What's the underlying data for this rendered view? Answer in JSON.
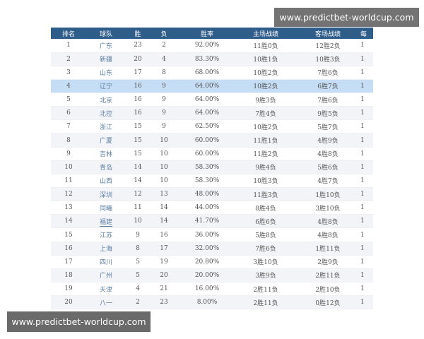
{
  "watermark": {
    "text": "www.predictbet-worldcup.com"
  },
  "table": {
    "columns": [
      "排名",
      "球队",
      "胜",
      "负",
      "胜率",
      "主场战绩",
      "客场战绩",
      "每"
    ],
    "rows": [
      {
        "rank": "1",
        "team": "广东",
        "w": "23",
        "l": "2",
        "pct": "92.00%",
        "home": "11胜0负",
        "away": "12胜2负",
        "extra": "1"
      },
      {
        "rank": "2",
        "team": "新疆",
        "w": "20",
        "l": "4",
        "pct": "83.30%",
        "home": "10胜1负",
        "away": "10胜3负",
        "extra": "1"
      },
      {
        "rank": "3",
        "team": "山东",
        "w": "17",
        "l": "8",
        "pct": "68.00%",
        "home": "10胜2负",
        "away": "7胜6负",
        "extra": "1"
      },
      {
        "rank": "4",
        "team": "辽宁",
        "w": "16",
        "l": "9",
        "pct": "64.00%",
        "home": "10胜2负",
        "away": "6胜7负",
        "extra": "1"
      },
      {
        "rank": "5",
        "team": "北京",
        "w": "16",
        "l": "9",
        "pct": "64.00%",
        "home": "9胜3负",
        "away": "7胜6负",
        "extra": "1"
      },
      {
        "rank": "6",
        "team": "北控",
        "w": "16",
        "l": "9",
        "pct": "64.00%",
        "home": "7胜4负",
        "away": "9胜5负",
        "extra": "1"
      },
      {
        "rank": "7",
        "team": "浙江",
        "w": "15",
        "l": "9",
        "pct": "62.50%",
        "home": "10胜2负",
        "away": "5胜7负",
        "extra": "1"
      },
      {
        "rank": "8",
        "team": "广厦",
        "w": "15",
        "l": "10",
        "pct": "60.00%",
        "home": "11胜1负",
        "away": "4胜9负",
        "extra": "1"
      },
      {
        "rank": "9",
        "team": "吉林",
        "w": "15",
        "l": "10",
        "pct": "60.00%",
        "home": "11胜2负",
        "away": "4胜8负",
        "extra": "1"
      },
      {
        "rank": "10",
        "team": "青岛",
        "w": "14",
        "l": "10",
        "pct": "58.30%",
        "home": "9胜4负",
        "away": "5胜6负",
        "extra": "1"
      },
      {
        "rank": "11",
        "team": "山西",
        "w": "14",
        "l": "10",
        "pct": "58.30%",
        "home": "10胜3负",
        "away": "4胜7负",
        "extra": "1"
      },
      {
        "rank": "12",
        "team": "深圳",
        "w": "12",
        "l": "13",
        "pct": "48.00%",
        "home": "11胜3负",
        "away": "1胜10负",
        "extra": "1"
      },
      {
        "rank": "13",
        "team": "同曦",
        "w": "11",
        "l": "14",
        "pct": "44.00%",
        "home": "8胜4负",
        "away": "3胜10负",
        "extra": "1"
      },
      {
        "rank": "14",
        "team": "福建",
        "w": "10",
        "l": "14",
        "pct": "41.70%",
        "home": "6胜6负",
        "away": "4胜8负",
        "extra": "1"
      },
      {
        "rank": "15",
        "team": "江苏",
        "w": "9",
        "l": "16",
        "pct": "36.00%",
        "home": "5胜8负",
        "away": "4胜8负",
        "extra": "1"
      },
      {
        "rank": "16",
        "team": "上海",
        "w": "8",
        "l": "17",
        "pct": "32.00%",
        "home": "7胜6负",
        "away": "1胜11负",
        "extra": "1"
      },
      {
        "rank": "17",
        "team": "四川",
        "w": "5",
        "l": "19",
        "pct": "20.80%",
        "home": "3胜10负",
        "away": "2胜9负",
        "extra": "1"
      },
      {
        "rank": "18",
        "team": "广州",
        "w": "5",
        "l": "20",
        "pct": "20.00%",
        "home": "3胜9负",
        "away": "2胜11负",
        "extra": "1"
      },
      {
        "rank": "19",
        "team": "天津",
        "w": "4",
        "l": "21",
        "pct": "16.00%",
        "home": "2胜11负",
        "away": "2胜10负",
        "extra": "1"
      },
      {
        "rank": "20",
        "team": "八一",
        "w": "2",
        "l": "23",
        "pct": "8.00%",
        "home": "2胜11负",
        "away": "0胜12负",
        "extra": "1"
      }
    ],
    "selected_rank": "4",
    "underlined_team": "福建"
  },
  "colors": {
    "header_bg": "#2f5d8a",
    "selected_row": "#c6def5",
    "stripe": "#f3f4f8"
  }
}
